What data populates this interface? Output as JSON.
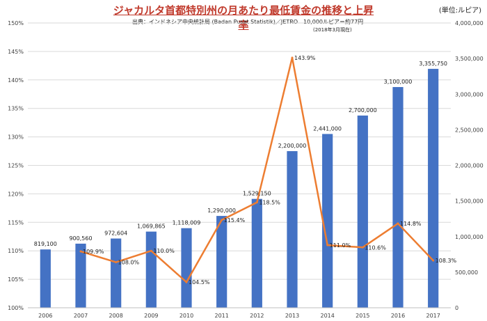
{
  "title": "ジャカルタ首都特別州の月あたり最低賃金の推移と上昇率",
  "unit_label": "(単位:ルピア)",
  "source": "出典：インドネシア中央統計局 (Badan Pusat Statistik)／JETRO",
  "rate_note": "10,000ルピア＝約77円",
  "as_of": "(2018年3月現在)",
  "chart_data": {
    "type": "bar",
    "categories": [
      "2006",
      "2007",
      "2008",
      "2009",
      "2010",
      "2011",
      "2012",
      "2013",
      "2014",
      "2015",
      "2016",
      "2017"
    ],
    "series": [
      {
        "name": "最低賃金",
        "type": "bar",
        "axis": "right",
        "color": "#4472C4",
        "values": [
          819100,
          900560,
          972604,
          1069865,
          1118009,
          1290000,
          1529150,
          2200000,
          2441000,
          2700000,
          3100000,
          3355750
        ],
        "labels": [
          "819,100",
          "900,560",
          "972,604",
          "1,069,865",
          "1,118,009",
          "1,290,000",
          "1,529,150",
          "2,200,000",
          "2,441,000",
          "2,700,000",
          "3,100,000",
          "3,355,750"
        ]
      },
      {
        "name": "上昇率",
        "type": "line",
        "axis": "left",
        "color": "#ED7D31",
        "values": [
          null,
          109.9,
          108.0,
          110.0,
          104.5,
          115.4,
          118.5,
          143.9,
          111.0,
          110.6,
          114.8,
          108.3
        ],
        "labels": [
          "",
          "109.9%",
          "108.0%",
          "110.0%",
          "104.5%",
          "115.4%",
          "118.5%",
          "143.9%",
          "111.0%",
          "110.6%",
          "114.8%",
          "108.3%"
        ]
      }
    ],
    "left_axis": {
      "ylim": [
        100,
        150
      ],
      "ticks": [
        100,
        105,
        110,
        115,
        120,
        125,
        130,
        135,
        140,
        145,
        150
      ],
      "tick_labels": [
        "100%",
        "105%",
        "110%",
        "115%",
        "120%",
        "125%",
        "130%",
        "135%",
        "140%",
        "145%",
        "150%"
      ]
    },
    "right_axis": {
      "ylim": [
        0,
        4000000
      ],
      "ticks": [
        0,
        500000,
        1000000,
        1500000,
        2000000,
        2500000,
        3000000,
        3500000,
        4000000
      ],
      "tick_labels": [
        "0",
        "500,000",
        "1,000,000",
        "1,500,000",
        "2,000,000",
        "2,500,000",
        "3,000,000",
        "3,500,000",
        "4,000,000"
      ]
    },
    "grid": true
  }
}
